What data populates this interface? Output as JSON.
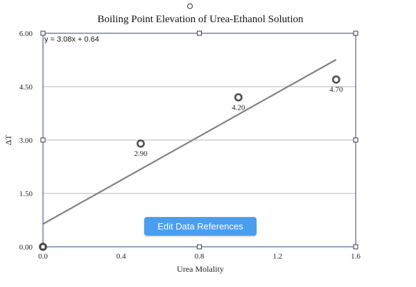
{
  "chart_data": {
    "type": "scatter",
    "title": "Boiling Point Elevation of Urea-Ethanol Solution",
    "xlabel": "Urea Molality",
    "ylabel": "ΔT",
    "xlim": [
      0,
      1.6
    ],
    "ylim": [
      0,
      6.0
    ],
    "x_ticks": [
      "0.0",
      "0.4",
      "0.8",
      "1.2",
      "1.6"
    ],
    "y_ticks": [
      "0.00",
      "1.50",
      "3.00",
      "4.50",
      "6.00"
    ],
    "grid": "horizontal",
    "series": [
      {
        "points": [
          {
            "x": 0.0,
            "y": 0.0,
            "label": ""
          },
          {
            "x": 0.5,
            "y": 2.9,
            "label": "2.90"
          },
          {
            "x": 1.0,
            "y": 4.2,
            "label": "4.20"
          },
          {
            "x": 1.5,
            "y": 4.7,
            "label": "4.70"
          }
        ]
      }
    ],
    "trendline": {
      "slope": 3.08,
      "intercept": 0.64,
      "x_range": [
        0,
        1.5
      ],
      "equation": "y = 3.08x + 0.64"
    }
  },
  "toolbar": {
    "edit_data_references_label": "Edit Data References"
  },
  "colors": {
    "frame": "#2f3f7f",
    "grid": "#b5b5b5",
    "trendline": "#808088",
    "marker": "#4d4d4d",
    "button": "#4a9ef0"
  }
}
